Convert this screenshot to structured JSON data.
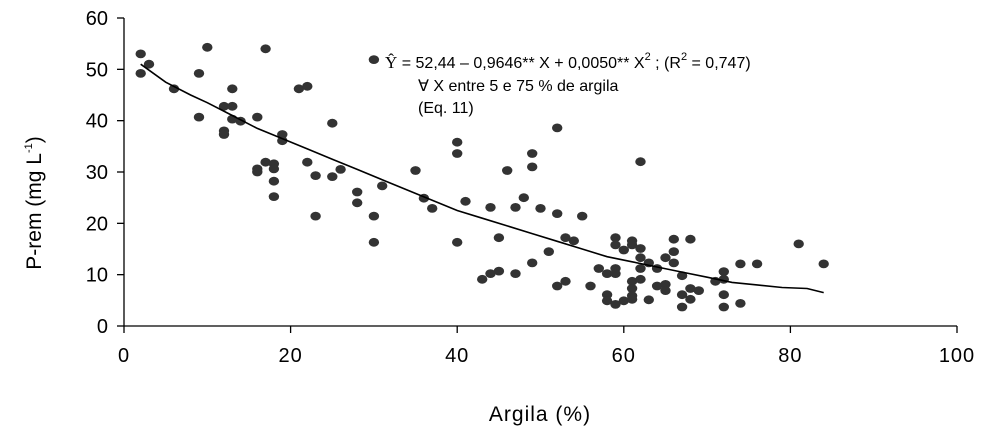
{
  "chart_data": {
    "type": "scatter",
    "title": "",
    "xlabel": "Argila (%)",
    "ylabel_parts": {
      "main": "P-rem (mg L",
      "sup": "-1",
      "close": ")"
    },
    "xlim": [
      0,
      100
    ],
    "ylim": [
      0,
      60
    ],
    "x_ticks": [
      0,
      20,
      40,
      60,
      80,
      100
    ],
    "y_ticks": [
      0,
      10,
      20,
      30,
      40,
      50,
      60
    ],
    "grid": false,
    "legend": "none",
    "colors": {
      "points": "#333333",
      "curve": "#000000",
      "axis": "#000000"
    },
    "equation": {
      "lhs": "Ŷ",
      "part1": " = 52,44 – 0,9646** X + 0,0050** X",
      "sup1": "2",
      "part2": " ; (R",
      "sup2": "2",
      "part3": " = 0,747)",
      "line2": "∀ X entre 5 e 75 % de argila",
      "line3": "(Eq. 11)"
    },
    "fit_curve": {
      "x": [
        2,
        5,
        8,
        10,
        13,
        16,
        19,
        22,
        25,
        28,
        31,
        34,
        37,
        40,
        43,
        46,
        49,
        52,
        55,
        58,
        61,
        64,
        67,
        70,
        73,
        76,
        79,
        82,
        84
      ],
      "y": [
        51.0,
        47.5,
        45.0,
        43.5,
        41.0,
        38.5,
        36.5,
        34.5,
        32.5,
        30.5,
        28.5,
        26.5,
        24.5,
        22.5,
        21.0,
        19.5,
        18.0,
        16.5,
        15.0,
        13.5,
        12.5,
        11.5,
        10.5,
        9.5,
        8.5,
        8.0,
        7.5,
        7.3,
        6.5
      ]
    },
    "series": [
      {
        "points": [
          [
            2,
            53
          ],
          [
            2,
            49.2
          ],
          [
            3,
            51
          ],
          [
            6,
            46.2
          ],
          [
            9,
            49.2
          ],
          [
            9,
            40.7
          ],
          [
            10,
            54.3
          ],
          [
            12,
            42.8
          ],
          [
            12,
            38
          ],
          [
            12,
            37.3
          ],
          [
            13,
            46.2
          ],
          [
            13,
            42.8
          ],
          [
            13,
            40.3
          ],
          [
            14,
            39.9
          ],
          [
            16,
            40.7
          ],
          [
            16,
            30.6
          ],
          [
            16,
            30
          ],
          [
            17,
            54
          ],
          [
            17,
            31.9
          ],
          [
            18,
            31.6
          ],
          [
            18,
            30.6
          ],
          [
            18,
            28.2
          ],
          [
            18,
            25.2
          ],
          [
            19,
            37.3
          ],
          [
            19,
            36.1
          ],
          [
            21,
            46.2
          ],
          [
            22,
            46.7
          ],
          [
            22,
            31.9
          ],
          [
            23,
            29.3
          ],
          [
            23,
            21.4
          ],
          [
            25,
            39.5
          ],
          [
            25,
            29.1
          ],
          [
            26,
            30.5
          ],
          [
            28,
            26.1
          ],
          [
            28,
            24
          ],
          [
            30,
            51.9
          ],
          [
            30,
            21.4
          ],
          [
            30,
            16.3
          ],
          [
            31,
            27.3
          ],
          [
            35,
            30.3
          ],
          [
            36,
            24.9
          ],
          [
            37,
            22.9
          ],
          [
            40,
            35.8
          ],
          [
            40,
            33.6
          ],
          [
            40,
            16.3
          ],
          [
            41,
            24.3
          ],
          [
            43,
            9.1
          ],
          [
            44,
            23.1
          ],
          [
            44,
            10.2
          ],
          [
            45,
            17.2
          ],
          [
            45,
            10.7
          ],
          [
            46,
            30.3
          ],
          [
            47,
            23.1
          ],
          [
            47,
            10.2
          ],
          [
            48,
            25
          ],
          [
            49,
            33.6
          ],
          [
            49,
            31
          ],
          [
            49,
            12.3
          ],
          [
            50,
            22.9
          ],
          [
            51,
            14.5
          ],
          [
            52,
            38.6
          ],
          [
            52,
            21.9
          ],
          [
            52,
            7.8
          ],
          [
            53,
            17.2
          ],
          [
            53,
            8.7
          ],
          [
            54,
            16.6
          ],
          [
            55,
            21.4
          ],
          [
            56,
            7.8
          ],
          [
            57,
            11.2
          ],
          [
            58,
            10.2
          ],
          [
            58,
            6.1
          ],
          [
            58,
            4.9
          ],
          [
            59,
            17.2
          ],
          [
            59,
            15.8
          ],
          [
            59,
            11.2
          ],
          [
            59,
            10.2
          ],
          [
            59,
            4.2
          ],
          [
            60,
            14.8
          ],
          [
            60,
            4.9
          ],
          [
            61,
            16.6
          ],
          [
            61,
            15.8
          ],
          [
            61,
            8.7
          ],
          [
            61,
            7.3
          ],
          [
            61,
            5.9
          ],
          [
            61,
            5.2
          ],
          [
            62,
            32
          ],
          [
            62,
            15.1
          ],
          [
            62,
            13.3
          ],
          [
            62,
            11.2
          ],
          [
            62,
            9.1
          ],
          [
            63,
            12.3
          ],
          [
            63,
            5.1
          ],
          [
            64,
            11.2
          ],
          [
            64,
            7.8
          ],
          [
            65,
            13.3
          ],
          [
            65,
            8.1
          ],
          [
            65,
            6.9
          ],
          [
            66,
            16.9
          ],
          [
            66,
            14.5
          ],
          [
            66,
            12.3
          ],
          [
            67,
            9.8
          ],
          [
            67,
            6.1
          ],
          [
            67,
            3.7
          ],
          [
            68,
            16.9
          ],
          [
            68,
            7.3
          ],
          [
            68,
            5.2
          ],
          [
            69,
            6.9
          ],
          [
            71,
            8.7
          ],
          [
            72,
            10.6
          ],
          [
            72,
            9.1
          ],
          [
            72,
            6.1
          ],
          [
            72,
            3.7
          ],
          [
            74,
            12.1
          ],
          [
            74,
            4.4
          ],
          [
            76,
            12.1
          ],
          [
            81,
            16
          ],
          [
            84,
            12.1
          ]
        ]
      }
    ]
  }
}
